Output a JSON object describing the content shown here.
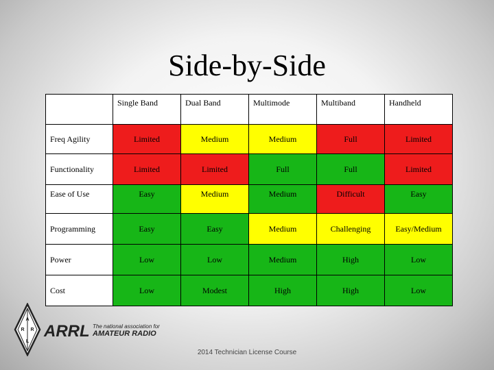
{
  "title": "Side-by-Side",
  "table": {
    "headers": [
      "Single Band",
      "Dual Band",
      "Multimode",
      "Multiband",
      "Handheld"
    ],
    "rows": [
      {
        "label": "Freq Agility",
        "cells": [
          {
            "text": "Limited",
            "color": "red"
          },
          {
            "text": "Medium",
            "color": "yellow"
          },
          {
            "text": "Medium",
            "color": "yellow"
          },
          {
            "text": "Full",
            "color": "red"
          },
          {
            "text": "Limited",
            "color": "red"
          }
        ]
      },
      {
        "label": "Functionality",
        "cells": [
          {
            "text": "Limited",
            "color": "red"
          },
          {
            "text": "Limited",
            "color": "red"
          },
          {
            "text": "Full",
            "color": "green"
          },
          {
            "text": "Full",
            "color": "green"
          },
          {
            "text": "Limited",
            "color": "red"
          }
        ]
      },
      {
        "label": "Ease of Use",
        "cells": [
          {
            "text": "Easy",
            "color": "green"
          },
          {
            "text": "Medium",
            "color": "yellow"
          },
          {
            "text": "Medium",
            "color": "green"
          },
          {
            "text": "Difficult",
            "color": "red"
          },
          {
            "text": "Easy",
            "color": "green"
          }
        ]
      },
      {
        "label": "Programming",
        "cells": [
          {
            "text": "Easy",
            "color": "green"
          },
          {
            "text": "Easy",
            "color": "green"
          },
          {
            "text": "Medium",
            "color": "yellow"
          },
          {
            "text": "Challenging",
            "color": "yellow"
          },
          {
            "text": "Easy/Medium",
            "color": "yellow"
          }
        ]
      },
      {
        "label": "Power",
        "cells": [
          {
            "text": "Low",
            "color": "green"
          },
          {
            "text": "Low",
            "color": "green"
          },
          {
            "text": "Medium",
            "color": "green"
          },
          {
            "text": "High",
            "color": "green"
          },
          {
            "text": "Low",
            "color": "green"
          }
        ]
      },
      {
        "label": "Cost",
        "cells": [
          {
            "text": "Low",
            "color": "green"
          },
          {
            "text": "Modest",
            "color": "green"
          },
          {
            "text": "High",
            "color": "green"
          },
          {
            "text": "High",
            "color": "green"
          },
          {
            "text": "Low",
            "color": "green"
          }
        ]
      }
    ]
  },
  "colors": {
    "red": "#ee1c1c",
    "yellow": "#ffff00",
    "green": "#17b617"
  },
  "logo": {
    "name": "ARRL",
    "tagline_1": "The national association for",
    "tagline_2": "AMATEUR RADIO",
    "emblem_letters": "ARRL",
    "icon": "arrl-diamond-emblem-icon"
  },
  "footer": "2014 Technician License Course"
}
